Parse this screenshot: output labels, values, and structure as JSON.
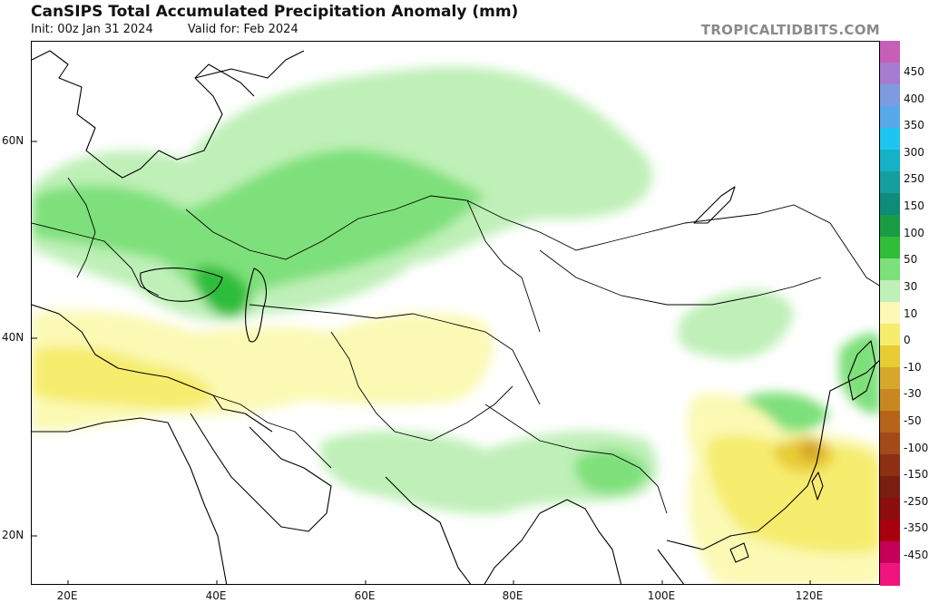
{
  "title": "CanSIPS Total Accumulated Precipitation Anomaly (mm)",
  "init": "Init: 00z Jan 31 2024",
  "valid": "Valid for: Feb 2024",
  "brand": "TROPICALTIDBITS.COM",
  "map": {
    "lat_labels": [
      "60N",
      "40N",
      "20N"
    ],
    "lon_labels": [
      "20E",
      "40E",
      "60E",
      "80E",
      "100E",
      "120E"
    ]
  },
  "colorbar": {
    "labels": [
      "450",
      "400",
      "350",
      "300",
      "250",
      "150",
      "100",
      "50",
      "30",
      "10",
      "0",
      "-10",
      "-30",
      "-50",
      "-100",
      "-150",
      "-250",
      "-350",
      "-450"
    ],
    "colors": [
      "#c75fb6",
      "#a67cd0",
      "#7d9be0",
      "#57a9ea",
      "#1fc5f2",
      "#14b1c7",
      "#169e9e",
      "#0f8b7a",
      "#1a9c44",
      "#2fbd3a",
      "#7ee07a",
      "#bff0b8",
      "#fbf9b4",
      "#f6ec6e",
      "#e8cc34",
      "#d6a72a",
      "#c98722",
      "#b8631a",
      "#a34a18",
      "#8e2f14",
      "#7a1e10",
      "#8c0d0d",
      "#a8000f",
      "#c60059",
      "#f0147e"
    ]
  }
}
